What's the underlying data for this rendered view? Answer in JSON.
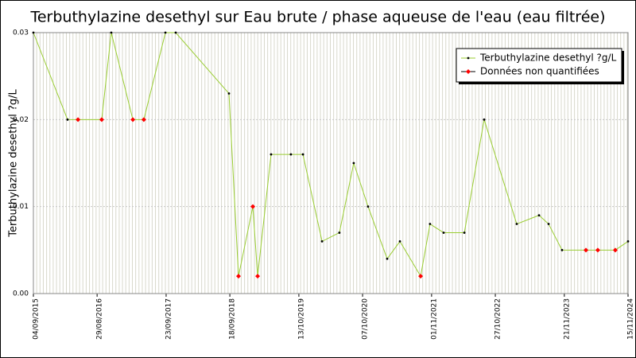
{
  "chart_data": {
    "type": "line",
    "title": "Terbuthylazine desethyl sur Eau brute / phase aqueuse de l'eau (eau filtrée)",
    "y_label": "Terbuthylazine desethyl ?g/L",
    "x": [
      "2015-09-04",
      "2016-03-15",
      "2016-05-13",
      "2016-09-24",
      "2016-11-17",
      "2017-03-19",
      "2017-05-20",
      "2017-09-19",
      "2017-11-16",
      "2018-09-13",
      "2018-11-06",
      "2019-01-26",
      "2019-02-22",
      "2019-05-09",
      "2019-08-29",
      "2019-11-05",
      "2020-02-21",
      "2020-05-29",
      "2020-08-18",
      "2020-11-07",
      "2021-02-23",
      "2021-05-06",
      "2021-08-31",
      "2021-10-23",
      "2022-01-08",
      "2022-05-05",
      "2022-08-25",
      "2023-02-25",
      "2023-07-01",
      "2023-08-24",
      "2023-11-08",
      "2024-03-22",
      "2024-05-28",
      "2024-09-04",
      "2024-11-15"
    ],
    "series": [
      {
        "name": "Terbuthylazine desethyl ?g/L",
        "color": "#9acd32",
        "marker_color": "#000000",
        "values": [
          0.03,
          0.02,
          0.02,
          0.02,
          0.03,
          0.02,
          0.02,
          0.03,
          0.03,
          0.023,
          0.002,
          0.01,
          0.002,
          0.016,
          0.016,
          0.016,
          0.006,
          0.007,
          0.015,
          0.01,
          0.004,
          0.006,
          0.002,
          0.008,
          0.007,
          0.007,
          0.02,
          0.008,
          0.009,
          0.008,
          0.005,
          0.005,
          0.005,
          0.005,
          0.006
        ]
      },
      {
        "name": "Données non quantifiées",
        "color": "#ff0000",
        "values": [
          null,
          null,
          0.02,
          0.02,
          null,
          0.02,
          0.02,
          null,
          null,
          null,
          0.002,
          0.01,
          0.002,
          null,
          null,
          null,
          null,
          null,
          null,
          null,
          null,
          null,
          0.002,
          null,
          null,
          null,
          null,
          null,
          null,
          null,
          null,
          0.005,
          0.005,
          0.005,
          null
        ]
      }
    ],
    "xlim": [
      "2015-09-04",
      "2024-11-15"
    ],
    "xticks": [
      {
        "value": "2015-09-04",
        "label": "04/09/2015"
      },
      {
        "value": "2016-08-29",
        "label": "29/08/2016"
      },
      {
        "value": "2017-09-23",
        "label": "23/09/2017"
      },
      {
        "value": "2018-09-18",
        "label": "18/09/2018"
      },
      {
        "value": "2019-10-13",
        "label": "13/10/2019"
      },
      {
        "value": "2020-10-07",
        "label": "07/10/2020"
      },
      {
        "value": "2021-11-01",
        "label": "01/11/2021"
      },
      {
        "value": "2022-10-27",
        "label": "27/10/2022"
      },
      {
        "value": "2023-11-21",
        "label": "21/11/2023"
      },
      {
        "value": "2024-11-15",
        "label": "15/11/2024"
      }
    ],
    "ylim": [
      0,
      0.03
    ],
    "yticks": [
      {
        "value": 0,
        "label": "0.00"
      },
      0.01,
      0.02,
      0.03
    ],
    "grid": true,
    "legend": "top-right"
  }
}
